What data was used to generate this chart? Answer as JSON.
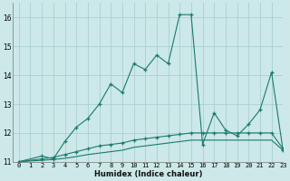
{
  "line1_x": [
    0,
    2,
    3,
    4,
    5,
    6,
    7,
    8,
    9,
    10,
    11,
    12,
    13,
    14,
    15,
    16,
    17,
    18,
    19,
    20,
    21,
    22,
    23
  ],
  "line1_y": [
    11.0,
    11.2,
    11.1,
    11.7,
    12.2,
    12.5,
    13.0,
    13.7,
    13.4,
    14.4,
    14.2,
    14.7,
    14.4,
    16.1,
    16.1,
    11.6,
    12.7,
    12.1,
    11.9,
    12.3,
    12.8,
    14.1,
    11.4
  ],
  "line2_x": [
    0,
    2,
    3,
    4,
    5,
    6,
    7,
    8,
    9,
    10,
    11,
    12,
    13,
    14,
    15,
    16,
    17,
    18,
    19,
    20,
    21,
    22,
    23
  ],
  "line2_y": [
    11.0,
    11.1,
    11.15,
    11.25,
    11.35,
    11.45,
    11.55,
    11.6,
    11.65,
    11.75,
    11.8,
    11.85,
    11.9,
    11.95,
    12.0,
    12.0,
    12.0,
    12.0,
    12.0,
    12.0,
    12.0,
    12.0,
    11.45
  ],
  "line3_x": [
    0,
    2,
    3,
    4,
    5,
    6,
    7,
    8,
    9,
    10,
    11,
    12,
    13,
    14,
    15,
    16,
    17,
    18,
    19,
    20,
    21,
    22,
    23
  ],
  "line3_y": [
    11.0,
    11.05,
    11.08,
    11.12,
    11.18,
    11.25,
    11.3,
    11.35,
    11.4,
    11.5,
    11.55,
    11.6,
    11.65,
    11.7,
    11.75,
    11.75,
    11.75,
    11.75,
    11.75,
    11.75,
    11.75,
    11.75,
    11.4
  ],
  "line_color": "#1a7a6e",
  "bg_color": "#cce8e8",
  "grid_color": "#aacfcf",
  "xlabel": "Humidex (Indice chaleur)",
  "ylim": [
    11,
    16.5
  ],
  "xlim": [
    -0.5,
    23
  ],
  "yticks": [
    11,
    12,
    13,
    14,
    15,
    16
  ],
  "xticks": [
    0,
    1,
    2,
    3,
    4,
    5,
    6,
    7,
    8,
    9,
    10,
    11,
    12,
    13,
    14,
    15,
    16,
    17,
    18,
    19,
    20,
    21,
    22,
    23
  ],
  "tick_fontsize": 5.0,
  "xlabel_fontsize": 6.0
}
